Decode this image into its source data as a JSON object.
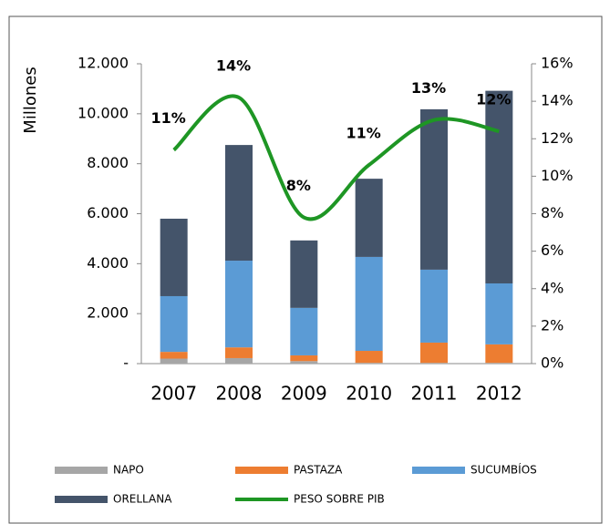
{
  "chart_data": {
    "type": "bar",
    "y_label": "Millones",
    "categories": [
      "2007",
      "2008",
      "2009",
      "2010",
      "2011",
      "2012"
    ],
    "series": [
      {
        "name": "NAPO",
        "color": "#a6a6a6",
        "values": [
          200,
          220,
          100,
          30,
          30,
          30
        ]
      },
      {
        "name": "PASTAZA",
        "color": "#ed7d31",
        "values": [
          270,
          430,
          230,
          480,
          810,
          740
        ]
      },
      {
        "name": "SUCUMBÍOS",
        "color": "#5b9bd5",
        "values": [
          2230,
          3470,
          1900,
          3760,
          2920,
          2440
        ]
      },
      {
        "name": "ORELLANA",
        "color": "#44546a",
        "values": [
          3100,
          4630,
          2700,
          3130,
          6420,
          7710
        ]
      },
      {
        "name": "PESO SOBRE PIB",
        "color": "#1e9624",
        "type": "line",
        "axis": "y2",
        "values": [
          11.4,
          14.2,
          7.8,
          10.6,
          13.0,
          12.4
        ],
        "value_labels": [
          "11%",
          "14%",
          "8%",
          "11%",
          "13%",
          "12%"
        ]
      }
    ],
    "ylim": [
      0,
      12000
    ],
    "yticks": [
      {
        "value": 0,
        "label": "-"
      },
      {
        "value": 2000,
        "label": "2.000"
      },
      {
        "value": 4000,
        "label": "4.000"
      },
      {
        "value": 6000,
        "label": "6.000"
      },
      {
        "value": 8000,
        "label": "8.000"
      },
      {
        "value": 10000,
        "label": "10.000"
      },
      {
        "value": 12000,
        "label": "12.000"
      }
    ],
    "y2lim": [
      0,
      16
    ],
    "y2ticks": [
      {
        "value": 0,
        "label": "0%"
      },
      {
        "value": 2,
        "label": "2%"
      },
      {
        "value": 4,
        "label": "4%"
      },
      {
        "value": 6,
        "label": "6%"
      },
      {
        "value": 8,
        "label": "8%"
      },
      {
        "value": 10,
        "label": "10%"
      },
      {
        "value": 12,
        "label": "12%"
      },
      {
        "value": 14,
        "label": "14%"
      },
      {
        "value": 16,
        "label": "16%"
      }
    ],
    "legend": "bottom"
  }
}
